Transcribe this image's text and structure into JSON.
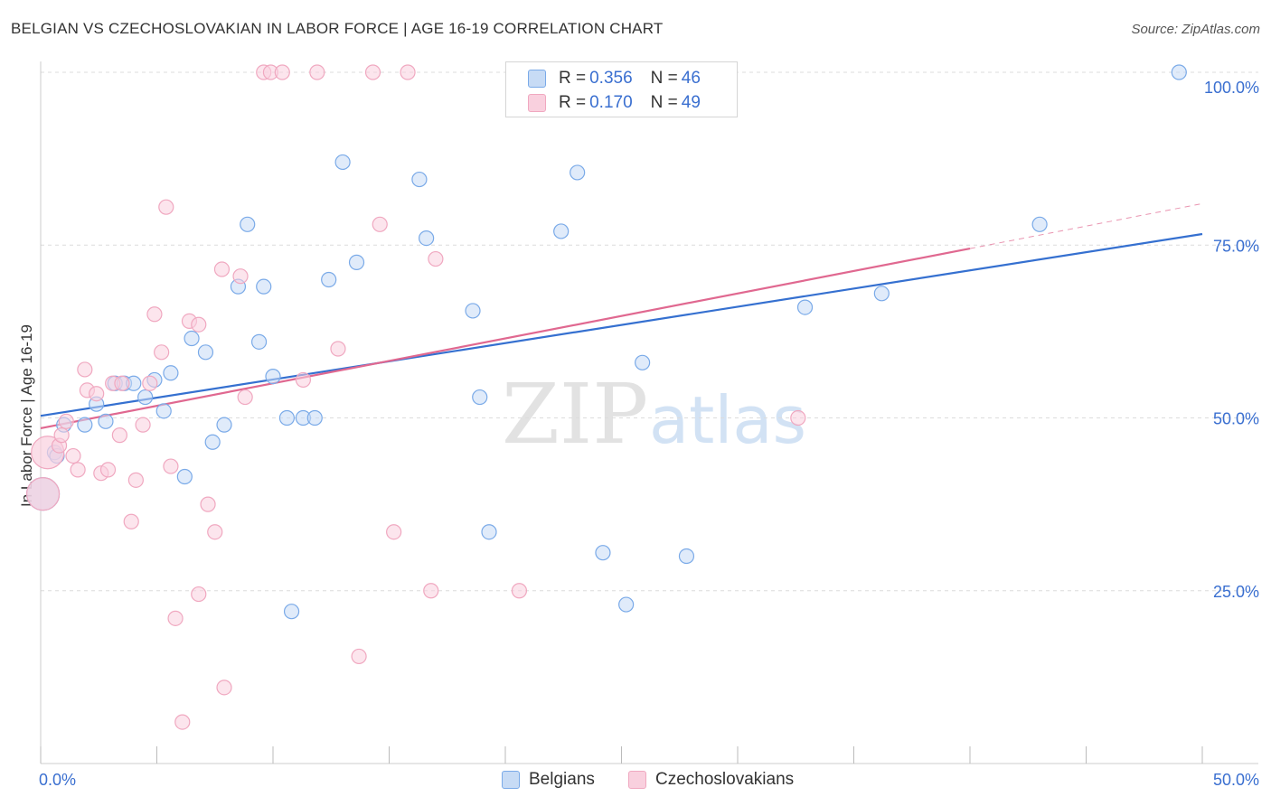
{
  "chart_data": {
    "type": "scatter",
    "title": "BELGIAN VS CZECHOSLOVAKIAN IN LABOR FORCE | AGE 16-19 CORRELATION CHART",
    "source": "Source: ZipAtlas.com",
    "xlabel": "",
    "ylabel": "In Labor Force | Age 16-19",
    "xlim": [
      0,
      50
    ],
    "ylim": [
      0,
      100
    ],
    "x_tick_labels": [
      "0.0%",
      "50.0%"
    ],
    "y_tick_labels": [
      "25.0%",
      "50.0%",
      "75.0%",
      "100.0%"
    ],
    "y_tick_values": [
      25,
      50,
      75,
      100
    ],
    "grid": true,
    "watermark": "ZIPatlas",
    "legend_stats": [
      {
        "r_label": "R = ",
        "r_value": "0.356",
        "n_label": "N = ",
        "n_value": "46"
      },
      {
        "r_label": "R = ",
        "r_value": "0.170",
        "n_label": "N = ",
        "n_value": "49"
      }
    ],
    "series": [
      {
        "name": "Belgians",
        "color": "#7aaae8",
        "fill": "#c7dbf5",
        "line_color": "#3570d0",
        "trend": {
          "x0": 0,
          "y0": 50.3,
          "x1": 50,
          "y1": 76.6
        },
        "points": [
          [
            0.1,
            39
          ],
          [
            0.6,
            45
          ],
          [
            0.7,
            44.5
          ],
          [
            1.0,
            49
          ],
          [
            1.9,
            49
          ],
          [
            2.4,
            52
          ],
          [
            2.8,
            49.5
          ],
          [
            3.2,
            55
          ],
          [
            3.6,
            55
          ],
          [
            4.0,
            55
          ],
          [
            4.5,
            53
          ],
          [
            4.9,
            55.5
          ],
          [
            5.3,
            51
          ],
          [
            5.6,
            56.5
          ],
          [
            6.2,
            41.5
          ],
          [
            6.5,
            61.5
          ],
          [
            7.1,
            59.5
          ],
          [
            7.4,
            46.5
          ],
          [
            7.9,
            49
          ],
          [
            8.5,
            69
          ],
          [
            8.9,
            78
          ],
          [
            9.4,
            61
          ],
          [
            9.6,
            69
          ],
          [
            10.0,
            56
          ],
          [
            10.6,
            50
          ],
          [
            10.8,
            22
          ],
          [
            11.3,
            50
          ],
          [
            11.8,
            50
          ],
          [
            12.4,
            70
          ],
          [
            13.0,
            87
          ],
          [
            13.6,
            72.5
          ],
          [
            16.3,
            84.5
          ],
          [
            16.6,
            76
          ],
          [
            18.6,
            65.5
          ],
          [
            18.9,
            53
          ],
          [
            19.3,
            33.5
          ],
          [
            22.4,
            77
          ],
          [
            23.1,
            85.5
          ],
          [
            24.2,
            30.5
          ],
          [
            25.2,
            23
          ],
          [
            25.9,
            58
          ],
          [
            27.8,
            30
          ],
          [
            32.9,
            66
          ],
          [
            36.2,
            68
          ],
          [
            43.0,
            78
          ],
          [
            49.0,
            100
          ]
        ]
      },
      {
        "name": "Czechoslovakians",
        "color": "#f0a8c0",
        "fill": "#f9d0de",
        "line_color": "#e06890",
        "trend": {
          "x0": 0,
          "y0": 48.5,
          "x1": 40,
          "y1": 74.5
        },
        "trend_dashed": {
          "x0": 40,
          "y0": 74.5,
          "x1": 50,
          "y1": 81.0
        },
        "points": [
          [
            0.1,
            39
          ],
          [
            0.3,
            45
          ],
          [
            0.8,
            46
          ],
          [
            0.9,
            47.5
          ],
          [
            1.1,
            49.5
          ],
          [
            1.4,
            44.5
          ],
          [
            1.6,
            42.5
          ],
          [
            1.9,
            57
          ],
          [
            2.0,
            54
          ],
          [
            2.4,
            53.5
          ],
          [
            2.6,
            42
          ],
          [
            2.9,
            42.5
          ],
          [
            3.1,
            55
          ],
          [
            3.4,
            47.5
          ],
          [
            3.5,
            55
          ],
          [
            3.9,
            35
          ],
          [
            4.1,
            41
          ],
          [
            4.4,
            49
          ],
          [
            4.7,
            55
          ],
          [
            4.9,
            65
          ],
          [
            5.2,
            59.5
          ],
          [
            5.4,
            80.5
          ],
          [
            5.6,
            43
          ],
          [
            5.8,
            21
          ],
          [
            6.1,
            6
          ],
          [
            6.4,
            64
          ],
          [
            6.8,
            63.5
          ],
          [
            6.8,
            24.5
          ],
          [
            7.2,
            37.5
          ],
          [
            7.5,
            33.5
          ],
          [
            7.8,
            71.5
          ],
          [
            7.9,
            11
          ],
          [
            8.6,
            70.5
          ],
          [
            8.8,
            53
          ],
          [
            9.6,
            100
          ],
          [
            9.9,
            100
          ],
          [
            10.4,
            100
          ],
          [
            11.3,
            55.5
          ],
          [
            11.9,
            100
          ],
          [
            12.8,
            60
          ],
          [
            13.7,
            15.5
          ],
          [
            14.3,
            100
          ],
          [
            14.6,
            78
          ],
          [
            15.2,
            33.5
          ],
          [
            15.8,
            100
          ],
          [
            16.8,
            25
          ],
          [
            17.0,
            73
          ],
          [
            20.6,
            25
          ],
          [
            32.6,
            50
          ]
        ]
      }
    ]
  }
}
